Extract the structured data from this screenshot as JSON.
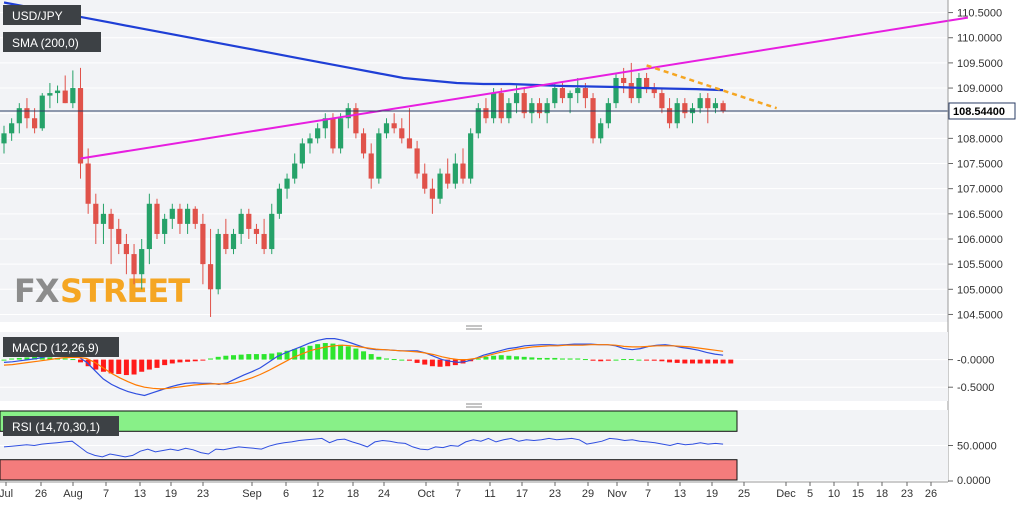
{
  "chart_data": [
    {
      "type": "candlestick",
      "symbol_label": "USD/JPY",
      "overlay_label": "SMA (200,0)",
      "current_price_label": "108.54400",
      "current_price": 108.544,
      "ylim": [
        104.35,
        110.75
      ],
      "y_ticks": [
        "110.5000",
        "110.0000",
        "109.5000",
        "109.0000",
        "108.5000",
        "108.0000",
        "107.5000",
        "107.0000",
        "106.5000",
        "106.0000",
        "105.5000",
        "105.0000",
        "104.5000"
      ],
      "x_ticks": [
        "Jul",
        "26",
        "Aug",
        "7",
        "13",
        "19",
        "23",
        "Sep",
        "6",
        "12",
        "18",
        "24",
        "Oct",
        "7",
        "11",
        "17",
        "23",
        "29",
        "Nov",
        "7",
        "13",
        "19",
        "25",
        "Dec",
        "5",
        "10",
        "15",
        "18",
        "23",
        "26"
      ],
      "candles_ohlc": [
        [
          107.9,
          108.25,
          107.7,
          108.1
        ],
        [
          108.1,
          108.4,
          107.95,
          108.3
        ],
        [
          108.3,
          108.7,
          108.1,
          108.6
        ],
        [
          108.6,
          108.8,
          108.2,
          108.4
        ],
        [
          108.4,
          108.6,
          108.1,
          108.2
        ],
        [
          108.2,
          108.9,
          108.15,
          108.85
        ],
        [
          108.85,
          109.1,
          108.6,
          108.9
        ],
        [
          108.9,
          109.05,
          108.7,
          108.95
        ],
        [
          108.95,
          109.25,
          108.7,
          108.7
        ],
        [
          108.7,
          109.35,
          108.6,
          109.0
        ],
        [
          109.0,
          109.4,
          107.2,
          107.5
        ],
        [
          107.5,
          107.8,
          106.5,
          106.7
        ],
        [
          106.7,
          106.9,
          105.9,
          106.3
        ],
        [
          106.3,
          106.7,
          105.9,
          106.5
        ],
        [
          106.5,
          106.6,
          105.5,
          106.2
        ],
        [
          106.2,
          106.4,
          105.7,
          105.9
        ],
        [
          105.9,
          106.1,
          105.3,
          105.7
        ],
        [
          105.7,
          105.9,
          105.1,
          105.3
        ],
        [
          105.3,
          106.0,
          105.0,
          105.8
        ],
        [
          105.8,
          106.9,
          105.5,
          106.7
        ],
        [
          106.7,
          106.8,
          106.0,
          106.1
        ],
        [
          106.1,
          106.5,
          105.9,
          106.4
        ],
        [
          106.4,
          106.7,
          106.2,
          106.6
        ],
        [
          106.6,
          106.7,
          106.1,
          106.3
        ],
        [
          106.3,
          106.7,
          106.1,
          106.6
        ],
        [
          106.6,
          106.65,
          106.2,
          106.3
        ],
        [
          106.3,
          106.5,
          105.1,
          105.5
        ],
        [
          105.5,
          106.2,
          104.45,
          105.0
        ],
        [
          105.0,
          106.2,
          104.9,
          106.1
        ],
        [
          106.1,
          106.4,
          105.7,
          105.8
        ],
        [
          105.8,
          106.2,
          105.7,
          106.1
        ],
        [
          106.1,
          106.6,
          105.9,
          106.5
        ],
        [
          106.5,
          106.6,
          106.0,
          106.2
        ],
        [
          106.2,
          106.3,
          105.9,
          106.1
        ],
        [
          106.1,
          106.4,
          105.7,
          105.8
        ],
        [
          105.8,
          106.7,
          105.7,
          106.5
        ],
        [
          106.5,
          107.1,
          106.4,
          107.0
        ],
        [
          107.0,
          107.3,
          106.8,
          107.2
        ],
        [
          107.2,
          107.7,
          107.1,
          107.5
        ],
        [
          107.5,
          108.0,
          107.4,
          107.9
        ],
        [
          107.9,
          108.1,
          107.7,
          108.0
        ],
        [
          108.0,
          108.3,
          107.9,
          108.2
        ],
        [
          108.2,
          108.5,
          108.0,
          108.4
        ],
        [
          108.4,
          108.5,
          107.7,
          107.8
        ],
        [
          107.8,
          108.5,
          107.7,
          108.4
        ],
        [
          108.4,
          108.7,
          108.2,
          108.6
        ],
        [
          108.6,
          108.7,
          108.0,
          108.1
        ],
        [
          108.1,
          108.2,
          107.6,
          107.7
        ],
        [
          107.7,
          107.9,
          107.0,
          107.2
        ],
        [
          107.2,
          108.2,
          107.1,
          108.1
        ],
        [
          108.1,
          108.4,
          108.0,
          108.3
        ],
        [
          108.3,
          108.5,
          108.1,
          108.2
        ],
        [
          108.2,
          108.4,
          107.9,
          108.0
        ],
        [
          108.0,
          108.6,
          107.8,
          107.8
        ],
        [
          107.8,
          107.95,
          107.2,
          107.3
        ],
        [
          107.3,
          107.5,
          106.9,
          107.0
        ],
        [
          107.0,
          107.2,
          106.5,
          106.8
        ],
        [
          106.8,
          107.4,
          106.7,
          107.3
        ],
        [
          107.3,
          107.6,
          107.0,
          107.1
        ],
        [
          107.1,
          107.7,
          107.0,
          107.5
        ],
        [
          107.5,
          107.8,
          107.1,
          107.2
        ],
        [
          107.2,
          108.2,
          107.1,
          108.1
        ],
        [
          108.1,
          108.7,
          108.0,
          108.6
        ],
        [
          108.6,
          108.8,
          108.3,
          108.4
        ],
        [
          108.4,
          109.0,
          108.3,
          108.9
        ],
        [
          108.9,
          109.0,
          108.3,
          108.4
        ],
        [
          108.4,
          108.8,
          108.3,
          108.7
        ],
        [
          108.7,
          109.05,
          108.5,
          108.9
        ],
        [
          108.9,
          109.0,
          108.4,
          108.5
        ],
        [
          108.5,
          108.8,
          108.3,
          108.7
        ],
        [
          108.7,
          108.8,
          108.4,
          108.5
        ],
        [
          108.5,
          108.8,
          108.3,
          108.7
        ],
        [
          108.7,
          109.1,
          108.6,
          109.0
        ],
        [
          109.0,
          109.1,
          108.7,
          108.8
        ],
        [
          108.8,
          108.95,
          108.5,
          108.9
        ],
        [
          108.9,
          109.2,
          108.7,
          109.0
        ],
        [
          109.0,
          109.1,
          108.6,
          108.8
        ],
        [
          108.8,
          108.9,
          107.9,
          108.0
        ],
        [
          108.0,
          108.4,
          107.9,
          108.3
        ],
        [
          108.3,
          108.8,
          108.2,
          108.7
        ],
        [
          108.7,
          109.3,
          108.6,
          109.2
        ],
        [
          109.2,
          109.4,
          108.9,
          109.1
        ],
        [
          109.1,
          109.5,
          108.7,
          108.8
        ],
        [
          108.8,
          109.3,
          108.7,
          109.2
        ],
        [
          109.2,
          109.3,
          108.9,
          109.0
        ],
        [
          109.0,
          109.1,
          108.8,
          108.9
        ],
        [
          108.9,
          109.0,
          108.5,
          108.6
        ],
        [
          108.6,
          108.8,
          108.2,
          108.3
        ],
        [
          108.3,
          108.8,
          108.2,
          108.7
        ],
        [
          108.7,
          108.8,
          108.4,
          108.5
        ],
        [
          108.5,
          108.7,
          108.3,
          108.6
        ],
        [
          108.6,
          108.9,
          108.5,
          108.8
        ],
        [
          108.8,
          108.9,
          108.3,
          108.6
        ],
        [
          108.6,
          108.8,
          108.5,
          108.7
        ],
        [
          108.7,
          108.75,
          108.5,
          108.55
        ]
      ],
      "sma_200": [
        110.7,
        110.6,
        110.5,
        110.4,
        110.3,
        110.2,
        110.1,
        110.0,
        109.9,
        109.8,
        109.7,
        109.6,
        109.5,
        109.4,
        109.3,
        109.2,
        109.15,
        109.1,
        109.08,
        109.08,
        109.06,
        109.04,
        109.03,
        109.02,
        109.0,
        108.99,
        108.98,
        108.96
      ],
      "trendline_support": {
        "start_index": 10,
        "start_value": 107.6,
        "end_index": 126,
        "end_value": 110.4
      },
      "trendline_resistance": {
        "start_index": 84,
        "start_value": 109.45,
        "end_index": 101,
        "end_value": 108.6
      }
    },
    {
      "type": "histogram",
      "label": "MACD (12,26,9)",
      "ylim": [
        -0.75,
        0.5
      ],
      "y_ticks": [
        "-0.0000",
        "-0.5000"
      ],
      "histogram": [
        0.0,
        0.02,
        0.03,
        0.04,
        0.05,
        0.06,
        0.04,
        0.03,
        0.02,
        0.01,
        -0.05,
        -0.12,
        -0.18,
        -0.22,
        -0.25,
        -0.26,
        -0.28,
        -0.27,
        -0.22,
        -0.18,
        -0.15,
        -0.1,
        -0.07,
        -0.05,
        -0.04,
        -0.03,
        -0.01,
        0.02,
        0.05,
        0.07,
        0.08,
        0.09,
        0.1,
        0.1,
        0.1,
        0.11,
        0.13,
        0.16,
        0.19,
        0.22,
        0.25,
        0.28,
        0.3,
        0.29,
        0.27,
        0.24,
        0.2,
        0.15,
        0.1,
        0.05,
        0.02,
        0.01,
        0.0,
        -0.02,
        -0.06,
        -0.09,
        -0.12,
        -0.13,
        -0.12,
        -0.1,
        -0.07,
        -0.03,
        0.02,
        0.05,
        0.07,
        0.08,
        0.07,
        0.06,
        0.05,
        0.04,
        0.03,
        0.03,
        0.03,
        0.02,
        0.02,
        0.02,
        0.01,
        -0.02,
        -0.03,
        -0.02,
        0.0,
        0.01,
        0.01,
        0.0,
        -0.01,
        -0.02,
        -0.03,
        -0.05,
        -0.06,
        -0.07,
        -0.07,
        -0.07,
        -0.07,
        -0.07,
        -0.07,
        -0.07
      ],
      "macd_line": [
        -0.05,
        -0.04,
        -0.02,
        0.0,
        0.02,
        0.05,
        0.07,
        0.08,
        0.06,
        0.05,
        -0.05,
        -0.2,
        -0.35,
        -0.45,
        -0.52,
        -0.58,
        -0.62,
        -0.65,
        -0.6,
        -0.55,
        -0.5,
        -0.46,
        -0.43,
        -0.42,
        -0.43,
        -0.43,
        -0.45,
        -0.42,
        -0.35,
        -0.28,
        -0.22,
        -0.15,
        -0.05,
        0.05,
        0.12,
        0.18,
        0.24,
        0.3,
        0.35,
        0.38,
        0.38,
        0.35,
        0.3,
        0.25,
        0.2,
        0.18,
        0.18,
        0.17,
        0.16,
        0.16,
        0.16,
        0.12,
        0.06,
        0.0,
        -0.03,
        -0.05,
        -0.03,
        0.02,
        0.08,
        0.12,
        0.16,
        0.2,
        0.22,
        0.25,
        0.26,
        0.27,
        0.27,
        0.26,
        0.27,
        0.28,
        0.28,
        0.28,
        0.27,
        0.27,
        0.25,
        0.2,
        0.18,
        0.2,
        0.24,
        0.26,
        0.27,
        0.25,
        0.22,
        0.2,
        0.17,
        0.13,
        0.1,
        0.08
      ],
      "signal_line": [
        -0.1,
        -0.09,
        -0.07,
        -0.05,
        -0.03,
        -0.01,
        0.01,
        0.03,
        0.04,
        0.04,
        0.02,
        -0.05,
        -0.15,
        -0.25,
        -0.33,
        -0.4,
        -0.46,
        -0.5,
        -0.52,
        -0.53,
        -0.52,
        -0.5,
        -0.48,
        -0.46,
        -0.45,
        -0.44,
        -0.44,
        -0.44,
        -0.42,
        -0.38,
        -0.33,
        -0.27,
        -0.2,
        -0.12,
        -0.04,
        0.04,
        0.1,
        0.16,
        0.2,
        0.23,
        0.25,
        0.26,
        0.25,
        0.23,
        0.21,
        0.19,
        0.18,
        0.17,
        0.16,
        0.15,
        0.14,
        0.12,
        0.09,
        0.05,
        0.02,
        0.0,
        0.0,
        0.02,
        0.05,
        0.09,
        0.13,
        0.16,
        0.19,
        0.21,
        0.23,
        0.24,
        0.25,
        0.25,
        0.26,
        0.26,
        0.26,
        0.27,
        0.27,
        0.27,
        0.26,
        0.24,
        0.23,
        0.23,
        0.24,
        0.25,
        0.25,
        0.25,
        0.24,
        0.23,
        0.21,
        0.19,
        0.17,
        0.15
      ]
    },
    {
      "type": "line",
      "label": "RSI (14,70,30,1)",
      "ylim": [
        0,
        100
      ],
      "overbought": 70,
      "oversold": 30,
      "y_ticks": [
        "50.0000",
        "0.0000"
      ],
      "values": [
        48,
        49,
        50,
        51,
        50,
        52,
        53,
        54,
        55,
        56,
        48,
        40,
        36,
        34,
        38,
        36,
        34,
        36,
        42,
        45,
        41,
        43,
        45,
        43,
        46,
        44,
        40,
        38,
        45,
        44,
        46,
        48,
        47,
        46,
        45,
        49,
        52,
        54,
        55,
        57,
        58,
        59,
        60,
        54,
        58,
        59,
        55,
        52,
        48,
        55,
        57,
        56,
        54,
        53,
        48,
        45,
        44,
        48,
        47,
        50,
        49,
        55,
        58,
        56,
        60,
        55,
        58,
        60,
        56,
        58,
        57,
        58,
        60,
        58,
        59,
        60,
        58,
        52,
        54,
        56,
        60,
        59,
        57,
        58,
        56,
        55,
        54,
        52,
        50,
        53,
        51,
        52,
        54,
        52,
        53,
        52
      ]
    }
  ],
  "watermark": {
    "fx": "FX",
    "street": "STREET",
    "color_fx": "#8c8c8c",
    "color_street": "#f5a623"
  },
  "colors": {
    "bull": "#26a269",
    "bear": "#e0524a",
    "sma": "#1f3fd6",
    "trend_up": "#e71ee0",
    "trend_down": "#f5a623",
    "macd_line": "#2f4fe0",
    "signal_line": "#ff7a00",
    "hist_pos": "#2ee52e",
    "hist_neg": "#ff1a1a",
    "rsi": "#2f4fe0",
    "ob_zone": "#88f088",
    "os_zone": "#f47c7c"
  }
}
